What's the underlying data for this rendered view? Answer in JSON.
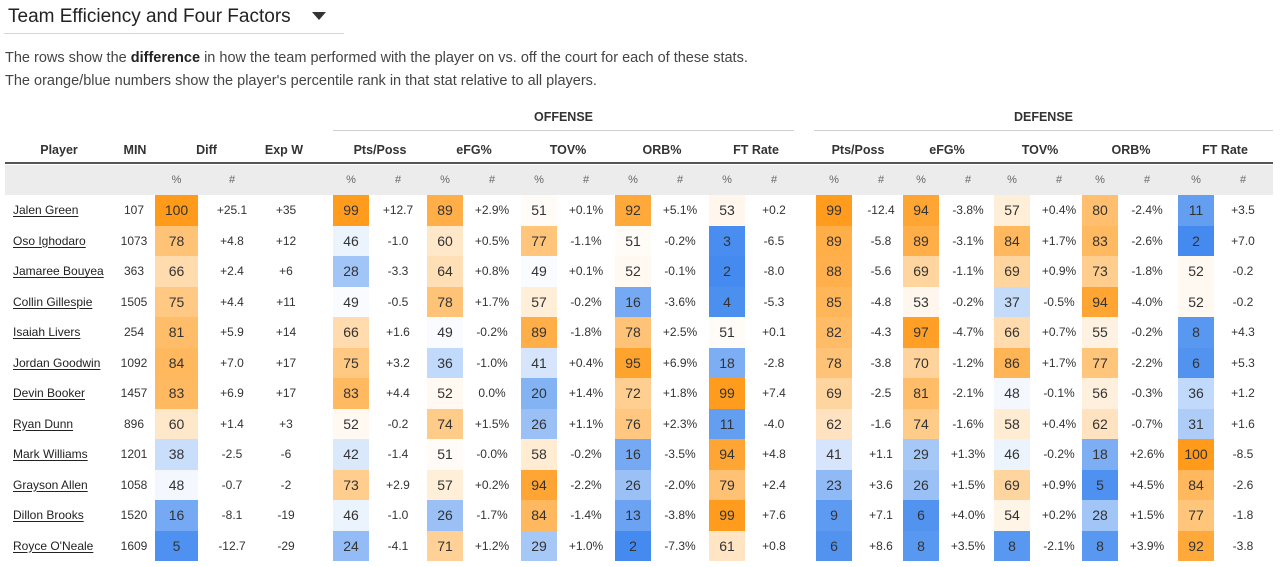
{
  "header": {
    "title": "Team Efficiency and Four Factors",
    "desc_line1_pre": "The rows show the ",
    "desc_line1_bold": "difference",
    "desc_line1_post": " in how the team performed with the player on vs. off the court for each of these stats.",
    "desc_line2": "The orange/blue numbers show the player's percentile rank in that stat relative to all players."
  },
  "groups": {
    "offense": "OFFENSE",
    "defense": "DEFENSE"
  },
  "columns": {
    "player": "Player",
    "min": "MIN",
    "diff": "Diff",
    "expw": "Exp W",
    "off": [
      "Pts/Poss",
      "eFG%",
      "TOV%",
      "ORB%",
      "FT Rate"
    ],
    "def": [
      "Pts/Poss",
      "eFG%",
      "TOV%",
      "ORB%",
      "FT Rate"
    ]
  },
  "sub": {
    "pct": "%",
    "num": "#"
  },
  "colors": {
    "orange": "#ff9a1a",
    "blue": "#3d86ee",
    "neutral": "#ffffff"
  },
  "rows": [
    {
      "name": "Jalen Green",
      "min": "107",
      "diff": [
        "100",
        "+25.1"
      ],
      "expw": "+35",
      "off": [
        [
          "99",
          "+12.7"
        ],
        [
          "89",
          "+2.9%"
        ],
        [
          "51",
          "+0.1%"
        ],
        [
          "92",
          "+5.1%"
        ],
        [
          "53",
          "+0.2"
        ]
      ],
      "def": [
        [
          "99",
          "-12.4"
        ],
        [
          "94",
          "-3.8%"
        ],
        [
          "57",
          "+0.4%"
        ],
        [
          "80",
          "-2.4%"
        ],
        [
          "11",
          "+3.5"
        ]
      ]
    },
    {
      "name": "Oso Ighodaro",
      "min": "1073",
      "diff": [
        "78",
        "+4.8"
      ],
      "expw": "+12",
      "off": [
        [
          "46",
          "-1.0"
        ],
        [
          "60",
          "+0.5%"
        ],
        [
          "77",
          "-1.1%"
        ],
        [
          "51",
          "-0.2%"
        ],
        [
          "3",
          "-6.5"
        ]
      ],
      "def": [
        [
          "89",
          "-5.8"
        ],
        [
          "89",
          "-3.1%"
        ],
        [
          "84",
          "+1.7%"
        ],
        [
          "83",
          "-2.6%"
        ],
        [
          "2",
          "+7.0"
        ]
      ]
    },
    {
      "name": "Jamaree Bouyea",
      "min": "363",
      "diff": [
        "66",
        "+2.4"
      ],
      "expw": "+6",
      "off": [
        [
          "28",
          "-3.3"
        ],
        [
          "64",
          "+0.8%"
        ],
        [
          "49",
          "+0.1%"
        ],
        [
          "52",
          "-0.1%"
        ],
        [
          "2",
          "-8.0"
        ]
      ],
      "def": [
        [
          "88",
          "-5.6"
        ],
        [
          "69",
          "-1.1%"
        ],
        [
          "69",
          "+0.9%"
        ],
        [
          "73",
          "-1.8%"
        ],
        [
          "52",
          "-0.2"
        ]
      ]
    },
    {
      "name": "Collin Gillespie",
      "min": "1505",
      "diff": [
        "75",
        "+4.4"
      ],
      "expw": "+11",
      "off": [
        [
          "49",
          "-0.5"
        ],
        [
          "78",
          "+1.7%"
        ],
        [
          "57",
          "-0.2%"
        ],
        [
          "16",
          "-3.6%"
        ],
        [
          "4",
          "-5.3"
        ]
      ],
      "def": [
        [
          "85",
          "-4.8"
        ],
        [
          "53",
          "-0.2%"
        ],
        [
          "37",
          "-0.5%"
        ],
        [
          "94",
          "-4.0%"
        ],
        [
          "52",
          "-0.2"
        ]
      ]
    },
    {
      "name": "Isaiah Livers",
      "min": "254",
      "diff": [
        "81",
        "+5.9"
      ],
      "expw": "+14",
      "off": [
        [
          "66",
          "+1.6"
        ],
        [
          "49",
          "-0.2%"
        ],
        [
          "89",
          "-1.8%"
        ],
        [
          "78",
          "+2.5%"
        ],
        [
          "51",
          "+0.1"
        ]
      ],
      "def": [
        [
          "82",
          "-4.3"
        ],
        [
          "97",
          "-4.7%"
        ],
        [
          "66",
          "+0.7%"
        ],
        [
          "55",
          "-0.2%"
        ],
        [
          "8",
          "+4.3"
        ]
      ]
    },
    {
      "name": "Jordan Goodwin",
      "min": "1092",
      "diff": [
        "84",
        "+7.0"
      ],
      "expw": "+17",
      "off": [
        [
          "75",
          "+3.2"
        ],
        [
          "36",
          "-1.0%"
        ],
        [
          "41",
          "+0.4%"
        ],
        [
          "95",
          "+6.9%"
        ],
        [
          "18",
          "-2.8"
        ]
      ],
      "def": [
        [
          "78",
          "-3.8"
        ],
        [
          "70",
          "-1.2%"
        ],
        [
          "86",
          "+1.7%"
        ],
        [
          "77",
          "-2.2%"
        ],
        [
          "6",
          "+5.3"
        ]
      ]
    },
    {
      "name": "Devin Booker",
      "min": "1457",
      "diff": [
        "83",
        "+6.9"
      ],
      "expw": "+17",
      "off": [
        [
          "83",
          "+4.4"
        ],
        [
          "52",
          "0.0%"
        ],
        [
          "20",
          "+1.4%"
        ],
        [
          "72",
          "+1.8%"
        ],
        [
          "99",
          "+7.4"
        ]
      ],
      "def": [
        [
          "69",
          "-2.5"
        ],
        [
          "81",
          "-2.1%"
        ],
        [
          "48",
          "-0.1%"
        ],
        [
          "56",
          "-0.3%"
        ],
        [
          "36",
          "+1.2"
        ]
      ]
    },
    {
      "name": "Ryan Dunn",
      "min": "896",
      "diff": [
        "60",
        "+1.4"
      ],
      "expw": "+3",
      "off": [
        [
          "52",
          "-0.2"
        ],
        [
          "74",
          "+1.5%"
        ],
        [
          "26",
          "+1.1%"
        ],
        [
          "76",
          "+2.3%"
        ],
        [
          "11",
          "-4.0"
        ]
      ],
      "def": [
        [
          "62",
          "-1.6"
        ],
        [
          "74",
          "-1.6%"
        ],
        [
          "58",
          "+0.4%"
        ],
        [
          "62",
          "-0.7%"
        ],
        [
          "31",
          "+1.6"
        ]
      ]
    },
    {
      "name": "Mark Williams",
      "min": "1201",
      "diff": [
        "38",
        "-2.5"
      ],
      "expw": "-6",
      "off": [
        [
          "42",
          "-1.4"
        ],
        [
          "51",
          "-0.0%"
        ],
        [
          "58",
          "-0.2%"
        ],
        [
          "16",
          "-3.5%"
        ],
        [
          "94",
          "+4.8"
        ]
      ],
      "def": [
        [
          "41",
          "+1.1"
        ],
        [
          "29",
          "+1.3%"
        ],
        [
          "46",
          "-0.2%"
        ],
        [
          "18",
          "+2.6%"
        ],
        [
          "100",
          "-8.5"
        ]
      ]
    },
    {
      "name": "Grayson Allen",
      "min": "1058",
      "diff": [
        "48",
        "-0.7"
      ],
      "expw": "-2",
      "off": [
        [
          "73",
          "+2.9"
        ],
        [
          "57",
          "+0.2%"
        ],
        [
          "94",
          "-2.2%"
        ],
        [
          "26",
          "-2.0%"
        ],
        [
          "79",
          "+2.4"
        ]
      ],
      "def": [
        [
          "23",
          "+3.6"
        ],
        [
          "26",
          "+1.5%"
        ],
        [
          "69",
          "+0.9%"
        ],
        [
          "5",
          "+4.5%"
        ],
        [
          "84",
          "-2.6"
        ]
      ]
    },
    {
      "name": "Dillon Brooks",
      "min": "1520",
      "diff": [
        "16",
        "-8.1"
      ],
      "expw": "-19",
      "off": [
        [
          "46",
          "-1.0"
        ],
        [
          "26",
          "-1.7%"
        ],
        [
          "84",
          "-1.4%"
        ],
        [
          "13",
          "-3.8%"
        ],
        [
          "99",
          "+7.6"
        ]
      ],
      "def": [
        [
          "9",
          "+7.1"
        ],
        [
          "6",
          "+4.0%"
        ],
        [
          "54",
          "+0.2%"
        ],
        [
          "28",
          "+1.5%"
        ],
        [
          "77",
          "-1.8"
        ]
      ]
    },
    {
      "name": "Royce O'Neale",
      "min": "1609",
      "diff": [
        "5",
        "-12.7"
      ],
      "expw": "-29",
      "off": [
        [
          "24",
          "-4.1"
        ],
        [
          "71",
          "+1.2%"
        ],
        [
          "29",
          "+1.0%"
        ],
        [
          "2",
          "-7.3%"
        ],
        [
          "61",
          "+0.8"
        ]
      ],
      "def": [
        [
          "6",
          "+8.6"
        ],
        [
          "8",
          "+3.5%"
        ],
        [
          "8",
          "-2.1%"
        ],
        [
          "8",
          "+3.9%"
        ],
        [
          "92",
          "-3.8"
        ]
      ]
    }
  ]
}
